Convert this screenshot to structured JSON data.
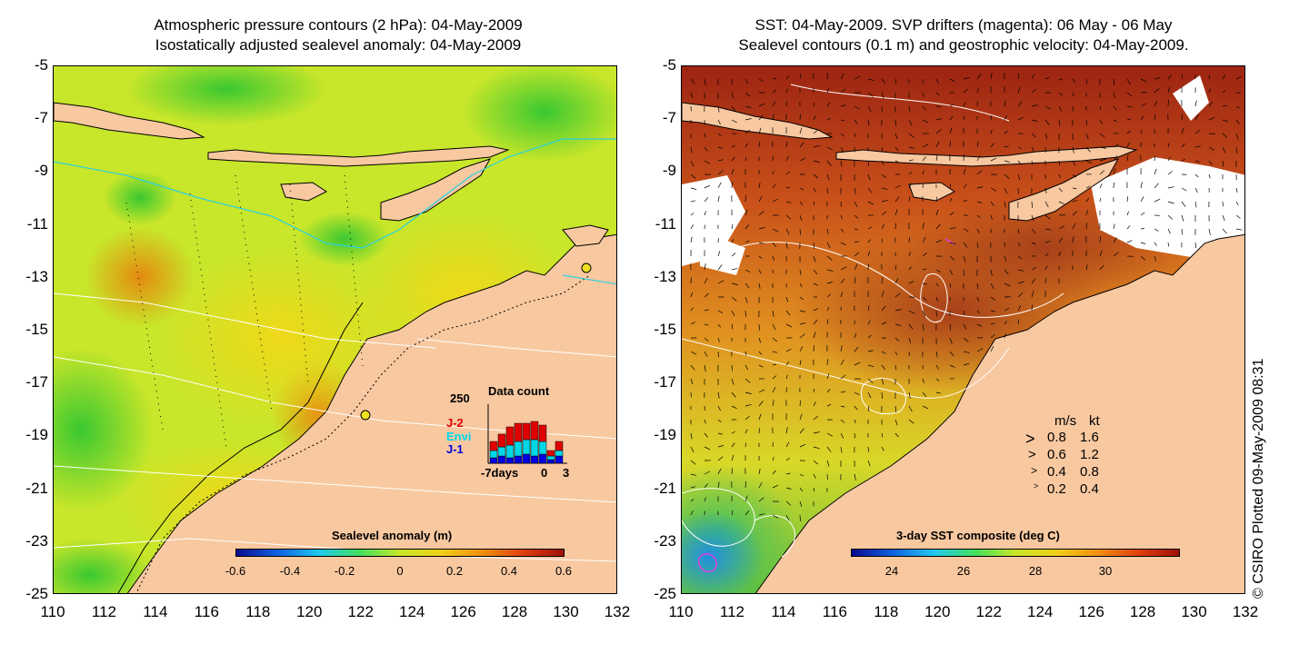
{
  "left": {
    "title_line1": "Atmospheric pressure contours (2 hPa): 04-May-2009",
    "title_line2": "Isostatically adjusted sealevel anomaly: 04-May-2009",
    "colorbar_title": "Sealevel anomaly (m)",
    "colorbar_ticks": [
      "-0.6",
      "-0.4",
      "-0.2",
      "0",
      "0.2",
      "0.4",
      "0.6"
    ],
    "data_count": {
      "title": "Data count",
      "ymax_label": "250",
      "xlabel_left": "-7days",
      "xlabel_mid": "0",
      "xlabel_right": "3",
      "satellites": [
        {
          "name": "J-2",
          "color": "#e00000"
        },
        {
          "name": "Envi",
          "color": "#00d8e8"
        },
        {
          "name": "J-1",
          "color": "#0000e0"
        }
      ]
    }
  },
  "right": {
    "title_line1": "SST: 04-May-2009. SVP drifters (magenta): 06 May - 06 May",
    "title_line2": "Sealevel contours (0.1 m) and geostrophic velocity: 04-May-2009.",
    "colorbar_title": "3-day SST composite (deg C)",
    "colorbar_ticks": [
      "24",
      "26",
      "28",
      "30"
    ],
    "velocity_legend": {
      "header_ms": "m/s",
      "header_kt": "kt",
      "rows": [
        {
          "ms": "0.8",
          "kt": "1.6"
        },
        {
          "ms": "0.6",
          "kt": "1.2"
        },
        {
          "ms": "0.4",
          "kt": "0.8"
        },
        {
          "ms": "0.2",
          "kt": "0.4"
        }
      ]
    }
  },
  "axes": {
    "y_ticks": [
      "-5",
      "-7",
      "-9",
      "-11",
      "-13",
      "-15",
      "-17",
      "-19",
      "-21",
      "-23",
      "-25"
    ],
    "x_ticks": [
      "110",
      "112",
      "114",
      "116",
      "118",
      "120",
      "122",
      "124",
      "126",
      "128",
      "130",
      "132"
    ]
  },
  "credit": "© CSIRO Plotted 09-May-2009 08:31",
  "colors": {
    "land": "#f8c8a0",
    "ssa_mid": "#cfe825",
    "sst_warm": "#a02810"
  }
}
